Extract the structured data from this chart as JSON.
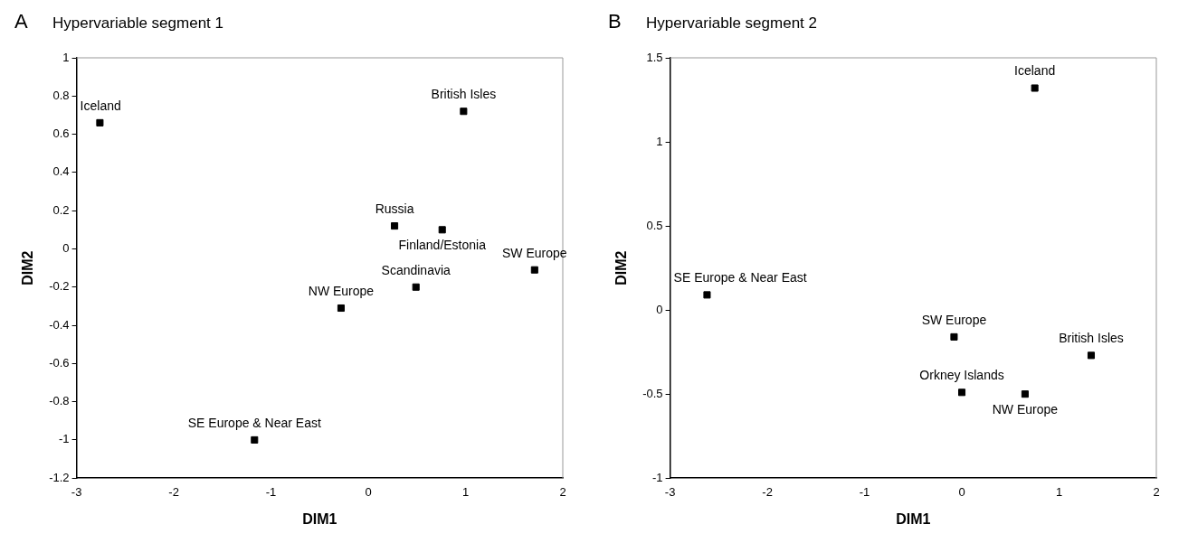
{
  "chart_data": [
    {
      "type": "scatter",
      "title": "Hypervariable segment 1",
      "xlabel": "DIM1",
      "ylabel": "DIM2",
      "marker": "square",
      "grid": false,
      "legend": false,
      "x": [
        -2.76,
        0.98,
        0.27,
        0.76,
        1.71,
        0.49,
        -0.28,
        -1.17
      ],
      "values": [
        0.66,
        0.72,
        0.12,
        0.1,
        -0.11,
        -0.2,
        -0.31,
        -1.0
      ],
      "color": "#000000",
      "xlim": [
        -3,
        2
      ],
      "xticks": [
        -3,
        -2,
        -1,
        0,
        1,
        2
      ],
      "ylim": [
        -1.2,
        1
      ],
      "yticks": [
        -1.2,
        -1,
        -0.8,
        -0.6,
        -0.4,
        -0.2,
        0,
        0.2,
        0.4,
        0.6,
        0.8,
        1
      ],
      "annotations": [
        "A",
        {
          "text": "Iceland",
          "x": -2.76,
          "y": 0.66
        },
        {
          "text": "British Isles",
          "x": 0.98,
          "y": 0.72
        },
        {
          "text": "Russia",
          "x": 0.27,
          "y": 0.12
        },
        {
          "text": "Finland/Estonia",
          "x": 0.76,
          "y": 0.1
        },
        {
          "text": "SW Europe",
          "x": 1.71,
          "y": -0.11
        },
        {
          "text": "Scandinavia",
          "x": 0.49,
          "y": -0.2
        },
        {
          "text": "NW Europe",
          "x": -0.28,
          "y": -0.31
        },
        {
          "text": "SE Europe & Near East",
          "x": -1.17,
          "y": -1.0
        }
      ]
    },
    {
      "type": "scatter",
      "title": "Hypervariable segment 2",
      "xlabel": "DIM1",
      "ylabel": "DIM2",
      "marker": "square",
      "grid": false,
      "legend": false,
      "x": [
        0.75,
        -2.62,
        -0.08,
        1.33,
        0,
        0.65
      ],
      "values": [
        1.32,
        0.09,
        -0.16,
        -0.27,
        -0.49,
        -0.5
      ],
      "color": "#000000",
      "xlim": [
        -3,
        2
      ],
      "xticks": [
        -3,
        -2,
        -1,
        0,
        1,
        2
      ],
      "ylim": [
        -1,
        1.5
      ],
      "yticks": [
        -1,
        -0.5,
        0,
        0.5,
        1,
        1.5
      ],
      "annotations": [
        "B",
        {
          "text": "Iceland",
          "x": 0.75,
          "y": 1.32
        },
        {
          "text": "SE Europe & Near East",
          "x": -2.62,
          "y": 0.09
        },
        {
          "text": "SW Europe",
          "x": -0.08,
          "y": -0.16
        },
        {
          "text": "British Isles",
          "x": 1.33,
          "y": -0.27
        },
        {
          "text": "Orkney Islands",
          "x": 0,
          "y": -0.49
        },
        {
          "text": "NW Europe",
          "x": 0.65,
          "y": -0.5
        }
      ]
    }
  ]
}
